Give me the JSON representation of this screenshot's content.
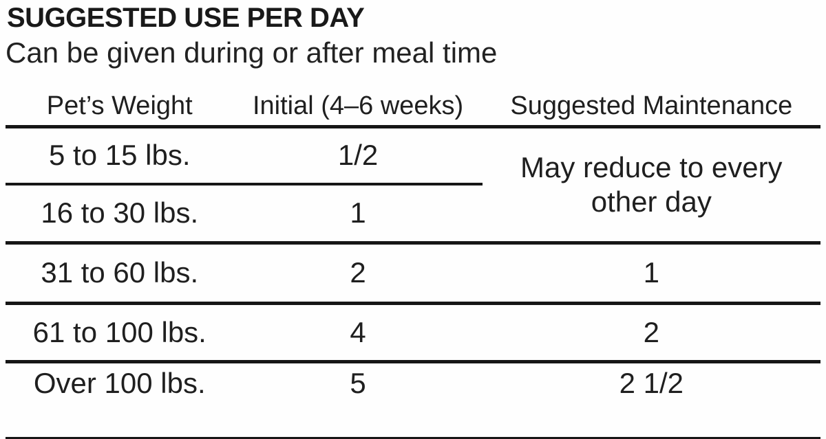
{
  "page": {
    "title": "SUGGESTED USE PER DAY",
    "subtitle": "Can be given during or after meal time"
  },
  "table": {
    "columns": [
      "Pet’s Weight",
      "Initial (4–6 weeks)",
      "Suggested Maintenance"
    ],
    "merged_maintenance": "May reduce to every other day",
    "rows": [
      {
        "weight": "5 to 15 lbs.",
        "initial": "1/2",
        "maintenance": ""
      },
      {
        "weight": "16 to 30 lbs.",
        "initial": "1",
        "maintenance": ""
      },
      {
        "weight": "31 to 60 lbs.",
        "initial": "2",
        "maintenance": "1"
      },
      {
        "weight": "61 to 100 lbs.",
        "initial": "4",
        "maintenance": "2"
      },
      {
        "weight": "Over 100 lbs.",
        "initial": "5",
        "maintenance": "2 1/2"
      }
    ]
  },
  "colors": {
    "text": "#1f1f1f",
    "rule": "#161616",
    "background": "#fefefe"
  }
}
